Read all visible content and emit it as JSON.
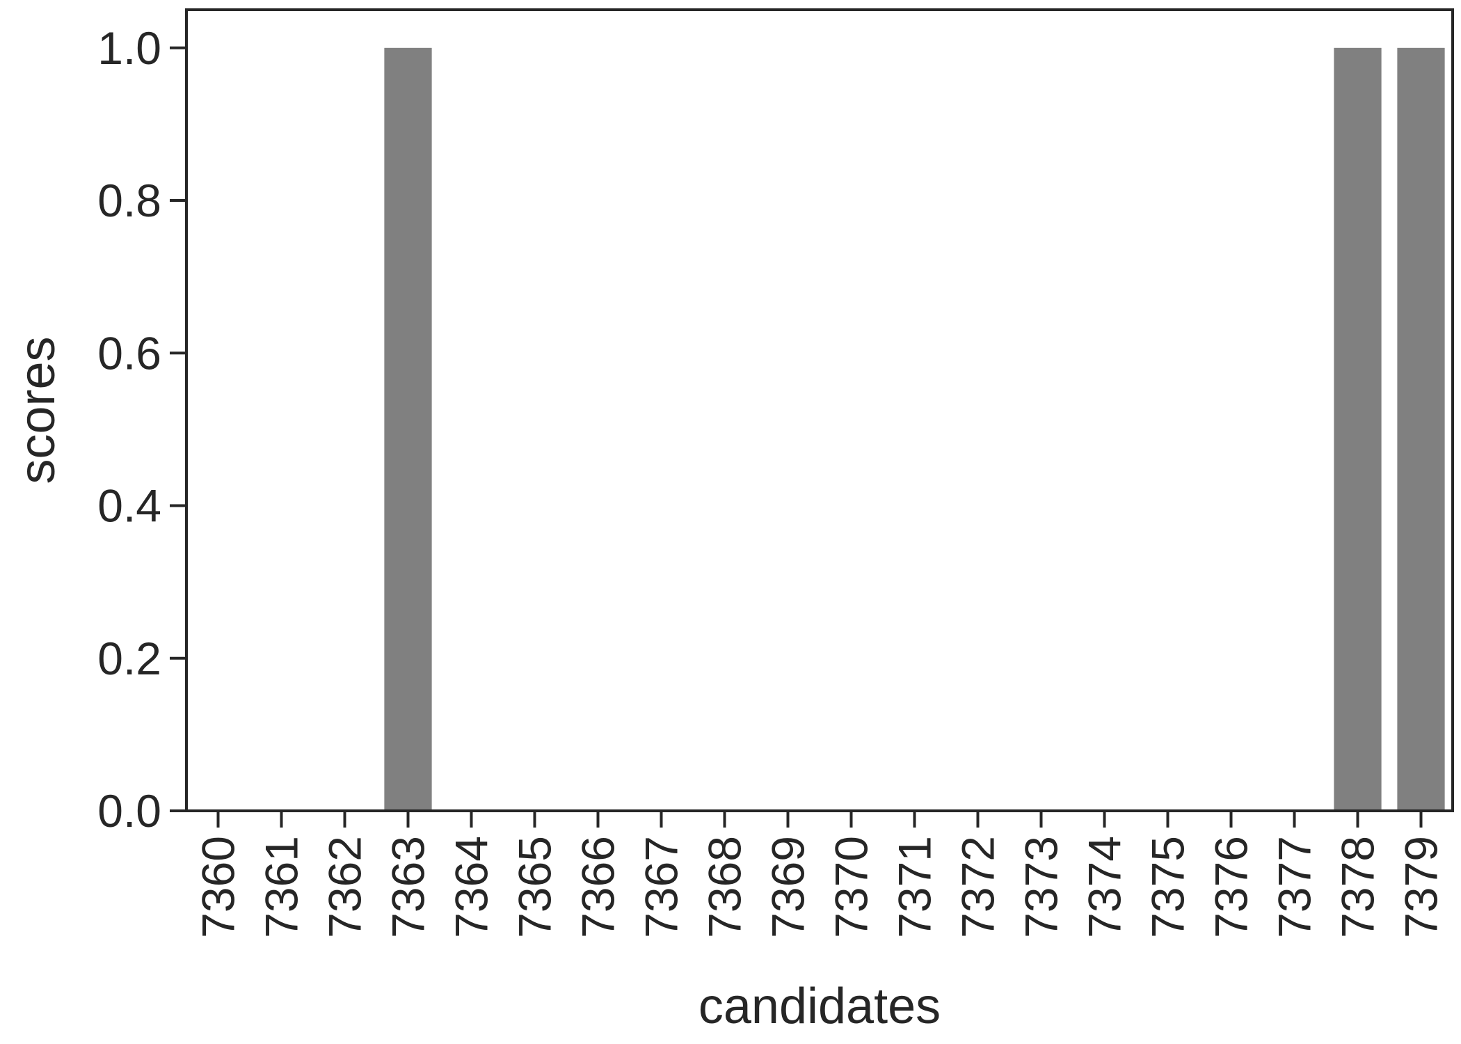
{
  "chart_data": {
    "type": "bar",
    "categories": [
      "7360",
      "7361",
      "7362",
      "7363",
      "7364",
      "7365",
      "7366",
      "7367",
      "7368",
      "7369",
      "7370",
      "7371",
      "7372",
      "7373",
      "7374",
      "7375",
      "7376",
      "7377",
      "7378",
      "7379"
    ],
    "values": [
      0,
      0,
      0,
      1,
      0,
      0,
      0,
      0,
      0,
      0,
      0,
      0,
      0,
      0,
      0,
      0,
      0,
      0,
      1,
      1
    ],
    "xlabel": "candidates",
    "ylabel": "scores",
    "ylim": [
      0,
      1.05
    ],
    "yticks": [
      "0.0",
      "0.2",
      "0.4",
      "0.6",
      "0.8",
      "1.0"
    ],
    "bar_color": "#808080",
    "grid": false,
    "x_tick_rotation": "vertical"
  }
}
